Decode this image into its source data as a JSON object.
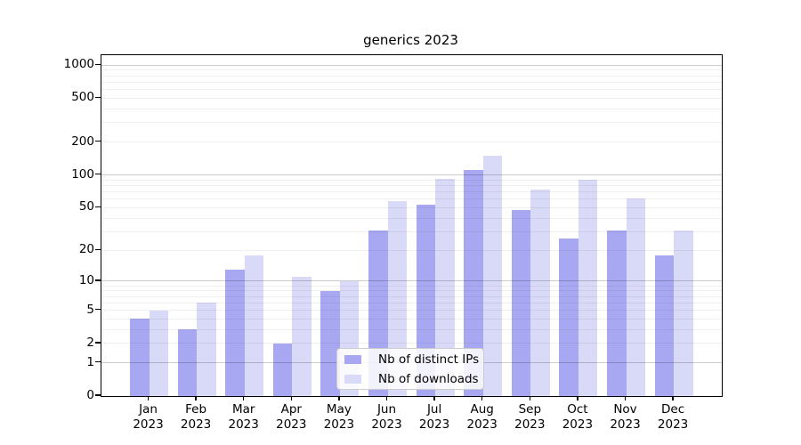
{
  "title": "generics 2023",
  "legend": {
    "entries": [
      {
        "label": "Nb of distinct IPs",
        "series_key": "ips"
      },
      {
        "label": "Nb of downloads",
        "series_key": "downloads"
      }
    ]
  },
  "colors": {
    "ips": "#a8a8f2",
    "downloads": "#d9d9f8",
    "grid_major": "rgba(0,0,0,0.20)",
    "grid_minor": "rgba(0,0,0,0.06)",
    "axis": "#000000",
    "background": "#ffffff"
  },
  "chart_data": {
    "type": "bar",
    "title": "generics 2023",
    "xlabel": "",
    "ylabel": "",
    "y_scale": "log1p",
    "grid": true,
    "legend_position": "lower center",
    "categories": [
      "Jan 2023",
      "Feb 2023",
      "Mar 2023",
      "Apr 2023",
      "May 2023",
      "Jun 2023",
      "Jul 2023",
      "Aug 2023",
      "Sep 2023",
      "Oct 2023",
      "Nov 2023",
      "Dec 2023"
    ],
    "series": [
      {
        "name": "Nb of distinct IPs",
        "values": [
          4,
          3,
          13,
          2,
          8,
          31,
          53,
          112,
          48,
          26,
          31,
          18
        ]
      },
      {
        "name": "Nb of downloads",
        "values": [
          5,
          6,
          18,
          11,
          10,
          58,
          93,
          150,
          74,
          90,
          61,
          31
        ]
      }
    ],
    "y_ticks": [
      0,
      1,
      2,
      5,
      10,
      20,
      50,
      100,
      200,
      500,
      1000
    ],
    "y_major_gridlines": [
      1,
      10,
      100,
      1000
    ],
    "ylim": [
      0,
      1235
    ]
  }
}
